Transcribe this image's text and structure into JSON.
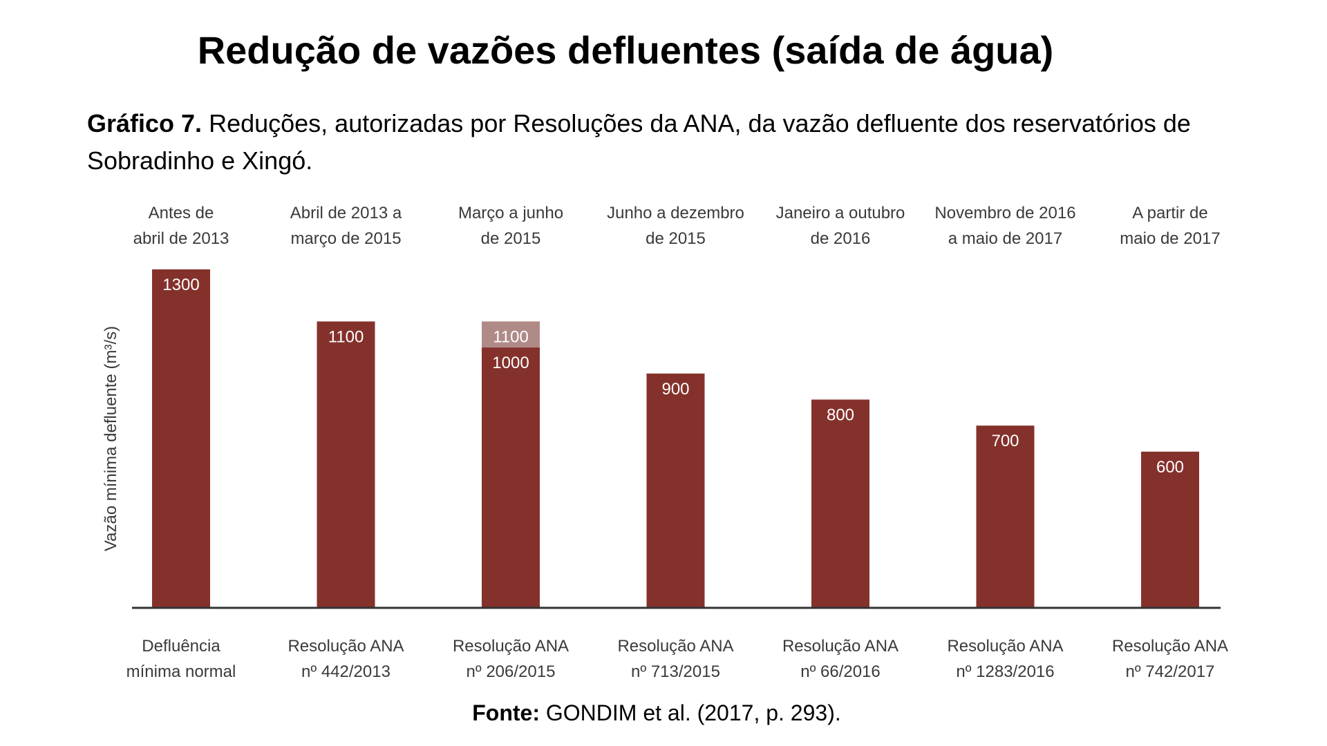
{
  "slide": {
    "title": "Redução de vazões defluentes (saída de água)",
    "caption_prefix": "Gráfico 7.",
    "caption_text": " Reduções, autorizadas por Resoluções da ANA, da vazão defluente dos reservatórios de Sobradinho e Xingó.",
    "source_prefix": "Fonte:",
    "source_text": " GONDIM et al. (2017, p. 293)."
  },
  "colors": {
    "bar": "#84312c",
    "bar_previous": "#b08a87",
    "axis": "#333333",
    "label": "#3a3a3a"
  },
  "chart_data": {
    "type": "bar",
    "ylabel": "Vazão mínima defluente (m³/s)",
    "xlabel": "",
    "ylim": [
      0,
      1300
    ],
    "grid": false,
    "categories_top": [
      [
        "Antes de",
        "abril de 2013"
      ],
      [
        "Abril de 2013 a",
        "março de 2015"
      ],
      [
        "Março a junho",
        "de 2015"
      ],
      [
        "Junho a dezembro",
        "de 2015"
      ],
      [
        "Janeiro a outubro",
        "de 2016"
      ],
      [
        "Novembro de 2016",
        "a maio de 2017"
      ],
      [
        "A partir de",
        "maio de 2017"
      ]
    ],
    "categories_bottom": [
      [
        "Defluência",
        "mínima normal"
      ],
      [
        "Resolução ANA",
        "nº 442/2013"
      ],
      [
        "Resolução ANA",
        "nº 206/2015"
      ],
      [
        "Resolução ANA",
        "nº 713/2015"
      ],
      [
        "Resolução ANA",
        "nº 66/2016"
      ],
      [
        "Resolução ANA",
        "nº 1283/2016"
      ],
      [
        "Resolução ANA",
        "nº 742/2017"
      ]
    ],
    "values": [
      1300,
      1100,
      1000,
      900,
      800,
      700,
      600
    ],
    "previous_values": [
      null,
      null,
      1100,
      null,
      null,
      null,
      null
    ]
  }
}
